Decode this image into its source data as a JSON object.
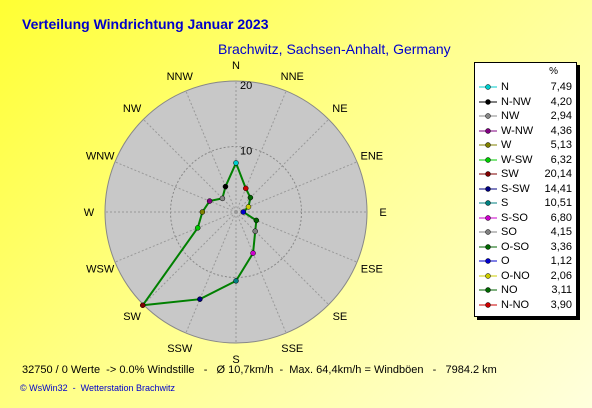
{
  "title": "Verteilung Windrichtung   Januar 2023",
  "location": "Brachwitz, Sachsen-Anhalt, Germany",
  "footer": "32750 / 0 Werte  -> 0.0% Windstille   -   Ø 10,7km/h  -  Max. 64,4km/h = Windböen   -   7984.2 km",
  "credit": "© WsWin32  -  Wetterstation Brachwitz",
  "chart_data": {
    "type": "radar",
    "unit_label": "%",
    "rmax": 20,
    "ring_labels": [
      "10",
      "20"
    ],
    "directions": [
      "N",
      "NNE",
      "NE",
      "ENE",
      "E",
      "ESE",
      "SE",
      "SSE",
      "S",
      "SSW",
      "SW",
      "WSW",
      "W",
      "WNW",
      "NW",
      "NNW"
    ],
    "values": [
      7.49,
      3.9,
      3.11,
      2.06,
      1.12,
      3.36,
      4.15,
      6.8,
      10.51,
      14.41,
      20.14,
      6.32,
      5.13,
      4.36,
      2.94,
      4.2
    ],
    "line_color": "#008000",
    "legend": [
      {
        "label": "N",
        "value": "7,49",
        "color": "#00cccc"
      },
      {
        "label": "N-NW",
        "value": "4,20",
        "color": "#000000"
      },
      {
        "label": "NW",
        "value": "2,94",
        "color": "#888888"
      },
      {
        "label": "W-NW",
        "value": "4,36",
        "color": "#800080"
      },
      {
        "label": "W",
        "value": "5,13",
        "color": "#808000"
      },
      {
        "label": "W-SW",
        "value": "6,32",
        "color": "#00cc00"
      },
      {
        "label": "SW",
        "value": "20,14",
        "color": "#800000"
      },
      {
        "label": "S-SW",
        "value": "14,41",
        "color": "#000080"
      },
      {
        "label": "S",
        "value": "10,51",
        "color": "#008080"
      },
      {
        "label": "S-SO",
        "value": "6,80",
        "color": "#cc00cc"
      },
      {
        "label": "SO",
        "value": "4,15",
        "color": "#808080"
      },
      {
        "label": "O-SO",
        "value": "3,36",
        "color": "#006600"
      },
      {
        "label": "O",
        "value": "1,12",
        "color": "#0000cc"
      },
      {
        "label": "O-NO",
        "value": "2,06",
        "color": "#cccc00"
      },
      {
        "label": "NO",
        "value": "3,11",
        "color": "#006600"
      },
      {
        "label": "N-NO",
        "value": "3,90",
        "color": "#cc0000"
      }
    ]
  }
}
